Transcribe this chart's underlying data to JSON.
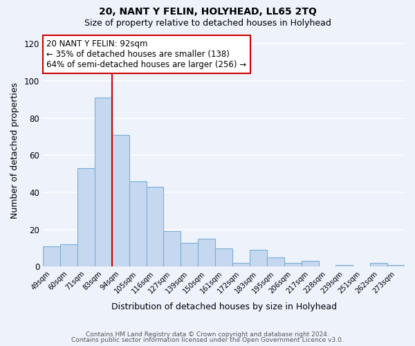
{
  "title1": "20, NANT Y FELIN, HOLYHEAD, LL65 2TQ",
  "title2": "Size of property relative to detached houses in Holyhead",
  "xlabel": "Distribution of detached houses by size in Holyhead",
  "ylabel": "Number of detached properties",
  "bar_labels": [
    "49sqm",
    "60sqm",
    "71sqm",
    "83sqm",
    "94sqm",
    "105sqm",
    "116sqm",
    "127sqm",
    "139sqm",
    "150sqm",
    "161sqm",
    "172sqm",
    "183sqm",
    "195sqm",
    "206sqm",
    "217sqm",
    "228sqm",
    "239sqm",
    "251sqm",
    "262sqm",
    "273sqm"
  ],
  "bar_values": [
    11,
    12,
    53,
    91,
    71,
    46,
    43,
    19,
    13,
    15,
    10,
    2,
    9,
    5,
    2,
    3,
    0,
    1,
    0,
    2,
    1
  ],
  "bar_color": "#c5d8f0",
  "bar_edge_color": "#7aafd4",
  "vline_index": 4,
  "vline_color": "#cc0000",
  "ylim": [
    0,
    125
  ],
  "yticks": [
    0,
    20,
    40,
    60,
    80,
    100,
    120
  ],
  "annotation_line1": "20 NANT Y FELIN: 92sqm",
  "annotation_line2": "← 35% of detached houses are smaller (138)",
  "annotation_line3": "64% of semi-detached houses are larger (256) →",
  "annotation_box_edgecolor": "#cc0000",
  "annotation_box_facecolor": "#ffffff",
  "footer1": "Contains HM Land Registry data © Crown copyright and database right 2024.",
  "footer2": "Contains public sector information licensed under the Open Government Licence v3.0.",
  "background_color": "#edf2fb",
  "grid_color": "#ffffff",
  "fig_width": 6.0,
  "fig_height": 5.0
}
